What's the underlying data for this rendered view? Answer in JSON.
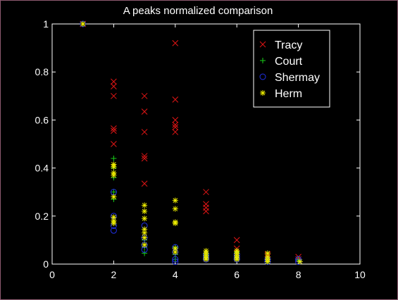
{
  "window": {
    "background": "#000000",
    "border": "#8e5a70"
  },
  "chart_data": {
    "type": "scatter",
    "title": "A peaks normalized comparison",
    "xlabel": "",
    "ylabel": "",
    "xlim": [
      0,
      10
    ],
    "ylim": [
      0,
      1
    ],
    "xticks": [
      0,
      2,
      4,
      6,
      8,
      10
    ],
    "yticks": [
      0,
      0.2,
      0.4,
      0.6,
      0.8,
      1
    ],
    "xtick_labels": [
      "0",
      "2",
      "4",
      "6",
      "8",
      "10"
    ],
    "ytick_labels": [
      "0",
      "0.2",
      "0.4",
      "0.6",
      "0.8",
      "1"
    ],
    "grid": false,
    "legend_position": "top-right",
    "axes_color": "#ffffff",
    "series": [
      {
        "name": "Tracy",
        "marker": "x",
        "color": "#e01515",
        "points": [
          [
            1,
            1
          ],
          [
            2,
            0.76
          ],
          [
            2,
            0.74
          ],
          [
            2,
            0.7
          ],
          [
            2,
            0.565
          ],
          [
            2,
            0.555
          ],
          [
            2,
            0.5
          ],
          [
            3,
            0.7
          ],
          [
            3,
            0.635
          ],
          [
            3,
            0.55
          ],
          [
            3,
            0.45
          ],
          [
            3,
            0.44
          ],
          [
            3,
            0.335
          ],
          [
            4,
            0.92
          ],
          [
            4,
            0.685
          ],
          [
            4,
            0.6
          ],
          [
            4,
            0.58
          ],
          [
            4,
            0.57
          ],
          [
            4,
            0.55
          ],
          [
            5,
            0.3
          ],
          [
            5,
            0.25
          ],
          [
            5,
            0.235
          ],
          [
            5,
            0.22
          ],
          [
            6,
            0.1
          ],
          [
            6,
            0.065
          ],
          [
            7,
            0.04
          ],
          [
            7,
            0.03
          ],
          [
            8,
            0.03
          ],
          [
            8,
            0.02
          ]
        ]
      },
      {
        "name": "Court",
        "marker": "+",
        "color": "#18d018",
        "points": [
          [
            1,
            1
          ],
          [
            2,
            0.44
          ],
          [
            2,
            0.4
          ],
          [
            2,
            0.36
          ],
          [
            2,
            0.3
          ],
          [
            2,
            0.27
          ],
          [
            3,
            0.1
          ],
          [
            3,
            0.07
          ],
          [
            3,
            0.045
          ],
          [
            4,
            0.07
          ],
          [
            4,
            0.04
          ],
          [
            4,
            0.02
          ],
          [
            5,
            0.04
          ],
          [
            5,
            0.03
          ],
          [
            5,
            0.02
          ],
          [
            6,
            0.05
          ],
          [
            6,
            0.03
          ],
          [
            6,
            0.02
          ],
          [
            7,
            0.02
          ],
          [
            7,
            0.01
          ],
          [
            8,
            0.02
          ],
          [
            8,
            0.015
          ]
        ]
      },
      {
        "name": "Shermay",
        "marker": "o",
        "color": "#2030e8",
        "points": [
          [
            1,
            1
          ],
          [
            2,
            0.3
          ],
          [
            2,
            0.2
          ],
          [
            2,
            0.16
          ],
          [
            2,
            0.14
          ],
          [
            3,
            0.16
          ],
          [
            3,
            0.11
          ],
          [
            3,
            0.08
          ],
          [
            3,
            0.06
          ],
          [
            4,
            0.07
          ],
          [
            4,
            0.05
          ],
          [
            4,
            0.02
          ],
          [
            4,
            0.01
          ],
          [
            5,
            0.04
          ],
          [
            5,
            0.03
          ],
          [
            5,
            0.02
          ],
          [
            6,
            0.04
          ],
          [
            6,
            0.03
          ],
          [
            6,
            0.02
          ],
          [
            7,
            0.02
          ],
          [
            7,
            0.01
          ],
          [
            8,
            0.02
          ],
          [
            8,
            0.01
          ]
        ]
      },
      {
        "name": "Herm",
        "marker": "*",
        "color": "#f0f000",
        "points": [
          [
            1,
            1
          ],
          [
            2,
            0.415
          ],
          [
            2,
            0.405
          ],
          [
            2,
            0.38
          ],
          [
            2,
            0.37
          ],
          [
            2,
            0.28
          ],
          [
            2,
            0.195
          ],
          [
            2,
            0.18
          ],
          [
            2,
            0.17
          ],
          [
            3,
            0.245
          ],
          [
            3,
            0.22
          ],
          [
            3,
            0.19
          ],
          [
            3,
            0.145
          ],
          [
            3,
            0.13
          ],
          [
            3,
            0.11
          ],
          [
            3,
            0.08
          ],
          [
            4,
            0.265
          ],
          [
            4,
            0.23
          ],
          [
            4,
            0.175
          ],
          [
            4,
            0.17
          ],
          [
            4,
            0.065
          ],
          [
            4,
            0.05
          ],
          [
            5,
            0.055
          ],
          [
            5,
            0.045
          ],
          [
            5,
            0.035
          ],
          [
            5,
            0.025
          ],
          [
            5,
            0.02
          ],
          [
            6,
            0.055
          ],
          [
            6,
            0.045
          ],
          [
            6,
            0.035
          ],
          [
            6,
            0.025
          ],
          [
            6,
            0.02
          ],
          [
            7,
            0.045
          ],
          [
            7,
            0.03
          ],
          [
            7,
            0.02
          ],
          [
            7,
            0.01
          ],
          [
            8.05,
            0.01
          ]
        ]
      }
    ]
  }
}
